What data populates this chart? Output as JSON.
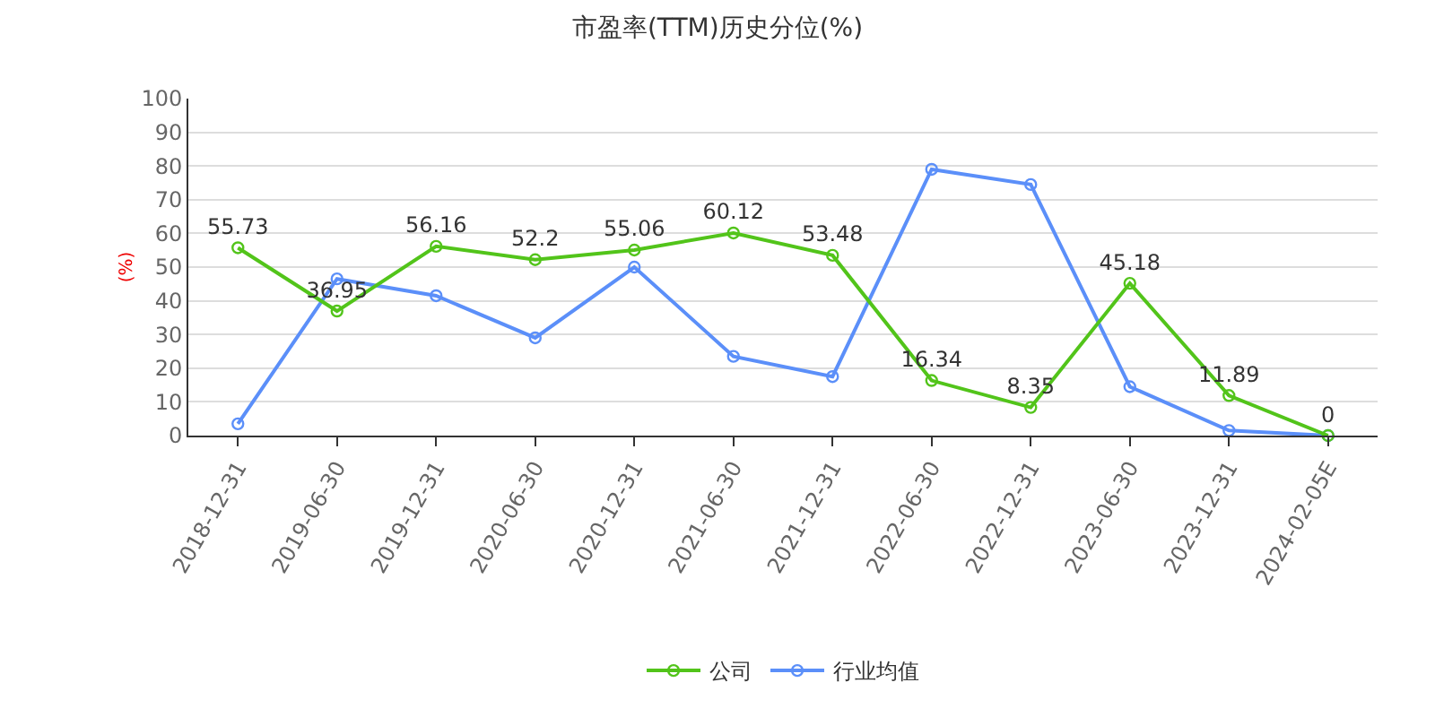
{
  "chart_data": {
    "type": "line",
    "title": "市盈率(TTM)历史分位(%)",
    "ylabel": "(%)",
    "categories": [
      "2018-12-31",
      "2019-06-30",
      "2019-12-31",
      "2020-06-30",
      "2020-12-31",
      "2021-06-30",
      "2021-12-31",
      "2022-06-30",
      "2022-12-31",
      "2023-06-30",
      "2023-12-31",
      "2024-02-05E"
    ],
    "series": [
      {
        "name": "公司",
        "color": "#52c41a",
        "values": [
          55.73,
          36.95,
          56.16,
          52.2,
          55.06,
          60.12,
          53.48,
          16.34,
          8.35,
          45.18,
          11.89,
          0
        ],
        "value_labels": [
          "55.73",
          "36.95",
          "56.16",
          "52.2",
          "55.06",
          "60.12",
          "53.48",
          "16.34",
          "8.35",
          "45.18",
          "11.89",
          "0"
        ]
      },
      {
        "name": "行业均值",
        "color": "#5b8ff9",
        "values": [
          3.5,
          46.5,
          41.5,
          29,
          50,
          23.5,
          17.5,
          79,
          74.5,
          14.5,
          1.5,
          0
        ]
      }
    ],
    "ylim": [
      0,
      100
    ],
    "yticks": [
      0,
      10,
      20,
      30,
      40,
      50,
      60,
      70,
      80,
      90,
      100
    ],
    "grid": "y",
    "legend": "bottom",
    "marker": "circle",
    "line_style": "solid"
  }
}
